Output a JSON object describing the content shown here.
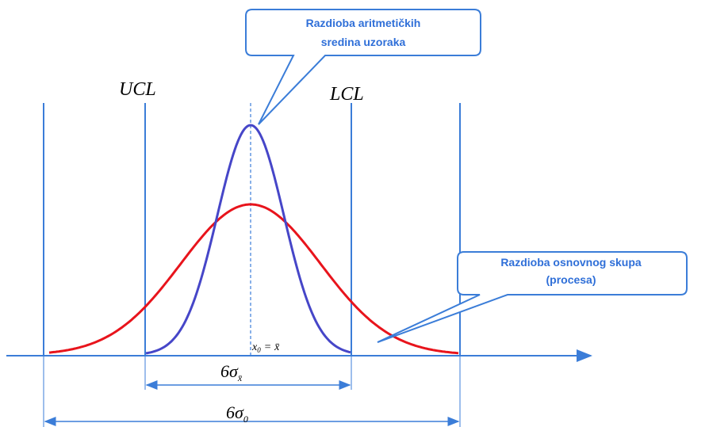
{
  "callouts": [
    {
      "lines": [
        "Razdioba aritmetičkih",
        "sredina uzoraka"
      ]
    },
    {
      "lines": [
        "Razdioba osnovnog skupa",
        "(procesa)"
      ]
    }
  ],
  "limits": {
    "ucl": "UCL",
    "lcl": "LCL"
  },
  "center_label": {
    "symbol": "x",
    "sub": "0",
    "eq": "=",
    "rhs": "x̄"
  },
  "widths": {
    "sample": {
      "symbol": "6σ",
      "sub": "x̄"
    },
    "process": {
      "symbol": "6σ",
      "sub": "0"
    }
  }
}
